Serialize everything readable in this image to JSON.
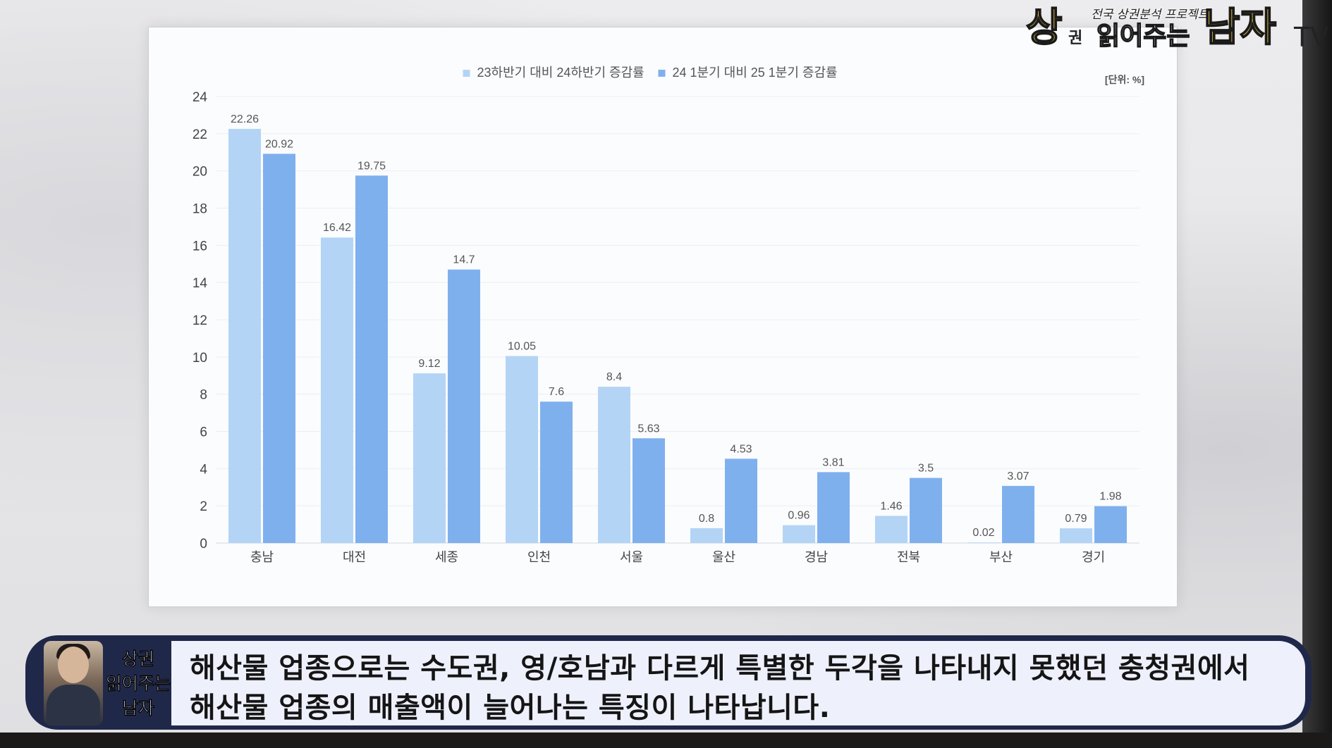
{
  "brand": {
    "tagline": "전국 상권분석 프로젝트",
    "name_part1": "상",
    "name_part1_small": "권",
    "name_part2": "읽어주는",
    "name_part3": "남자",
    "name_part4": "TV"
  },
  "chart_data": {
    "type": "bar",
    "unit_label": "[단위: %]",
    "categories": [
      "충남",
      "대전",
      "세종",
      "인천",
      "서울",
      "울산",
      "경남",
      "전북",
      "부산",
      "경기"
    ],
    "series": [
      {
        "name": "23하반기 대비 24하반기 증감률",
        "color": "#b3d4f5",
        "values": [
          22.26,
          16.42,
          9.12,
          10.05,
          8.4,
          0.8,
          0.96,
          1.46,
          0.02,
          0.79
        ]
      },
      {
        "name": "24 1분기 대비 25 1분기 증감률",
        "color": "#7fb0ee",
        "values": [
          20.92,
          19.75,
          14.7,
          7.6,
          5.63,
          4.53,
          3.81,
          3.5,
          3.07,
          1.98
        ]
      }
    ],
    "ylim": [
      0,
      24
    ],
    "yticks": [
      0,
      2,
      4,
      6,
      8,
      10,
      12,
      14,
      16,
      18,
      20,
      22,
      24
    ],
    "grid": true,
    "legend_position": "top-center"
  },
  "side_logo": {
    "line1": "상권",
    "line2": "읽어주는",
    "line3": "남자"
  },
  "caption": {
    "line1": "해산물 업종으로는 수도권, 영/호남과 다르게 특별한 두각을 나타내지 못했던 충청권에서",
    "line2": "해산물 업종의 매출액이 늘어나는 특징이 나타납니다."
  }
}
